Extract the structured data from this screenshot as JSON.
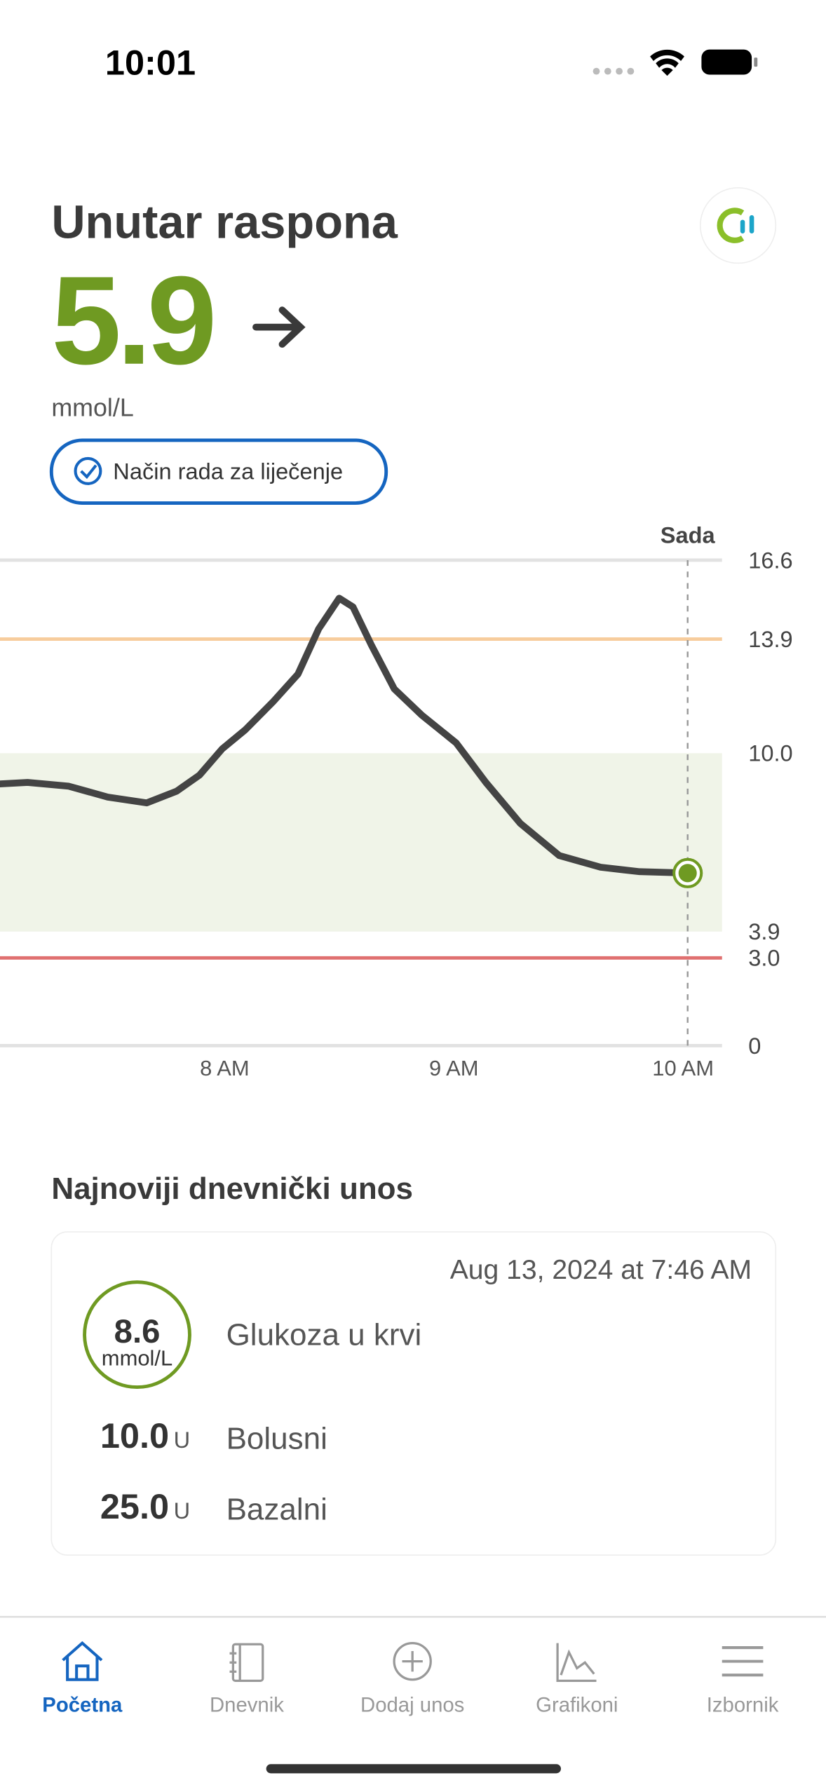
{
  "status_bar": {
    "time": "10:01"
  },
  "header": {
    "title": "Unutar raspona",
    "value": "5.9",
    "unit": "mmol/L",
    "mode_badge": "Način rada za liječenje"
  },
  "chart_data": {
    "type": "line",
    "x": [
      7.02,
      7.14,
      7.32,
      7.49,
      7.66,
      7.79,
      7.89,
      7.99,
      8.09,
      8.21,
      8.32,
      8.41,
      8.5,
      8.56,
      8.64,
      8.74,
      8.86,
      9.01,
      9.14,
      9.29,
      9.46,
      9.64,
      9.81,
      10.02
    ],
    "series": [
      {
        "color": "#444444",
        "values": [
          8.95,
          9.0,
          8.87,
          8.5,
          8.3,
          8.7,
          9.25,
          10.15,
          10.8,
          11.75,
          12.7,
          14.25,
          15.3,
          15.0,
          13.7,
          12.2,
          11.3,
          10.35,
          9.0,
          7.6,
          6.5,
          6.1,
          5.95,
          5.9
        ]
      }
    ],
    "xlim": [
      7.02,
      10.17
    ],
    "xticks": [
      {
        "value": 8,
        "label": "8 AM"
      },
      {
        "value": 9,
        "label": "9 AM"
      },
      {
        "value": 10,
        "label": "10 AM"
      }
    ],
    "ylim": [
      0,
      16.6
    ],
    "yticks": [
      16.6,
      13.9,
      {
        "value": 10,
        "label": "10.0"
      },
      3.9,
      {
        "value": 3,
        "label": "3.0"
      },
      0
    ],
    "target_range": [
      3.9,
      10
    ],
    "high_line": 13.9,
    "low_line": 3,
    "now_label": "Sada",
    "point_color": "#6f9a22"
  },
  "recent_entry": {
    "title": "Najnoviji dnevnički unos",
    "date": "Aug 13, 2024 at 7:46 AM",
    "glucose": {
      "value": "8.6",
      "unit": "mmol/L",
      "label": "Glukoza u krvi"
    },
    "bolus": {
      "value": "10.0",
      "unit": "U",
      "label": "Bolusni"
    },
    "basal": {
      "value": "25.0",
      "unit": "U",
      "label": "Bazalni"
    }
  },
  "tab_bar": {
    "tabs": [
      "Početna",
      "Dnevnik",
      "Dodaj unos",
      "Grafikoni",
      "Izbornik"
    ]
  }
}
